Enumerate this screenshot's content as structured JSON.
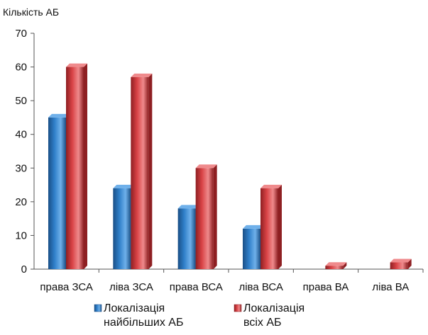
{
  "chart_data": {
    "type": "bar",
    "ylabel": "Кількість АБ",
    "xlabel": "",
    "categories": [
      "права ЗСА",
      "ліва ЗСА",
      "права ВСА",
      "ліва ВСА",
      "права ВА",
      "ліва ВА"
    ],
    "series": [
      {
        "name": [
          "Локалізація",
          "найбільших АБ"
        ],
        "values": [
          45,
          24,
          18,
          12,
          0,
          0
        ],
        "color": "#2f7fc9",
        "color_dark": "#1a4f86",
        "color_light": "#6fb0ea"
      },
      {
        "name": [
          "Локалізація",
          "всіх АБ"
        ],
        "values": [
          60,
          57,
          30,
          24,
          1,
          2
        ],
        "color": "#d94346",
        "color_dark": "#8e1f22",
        "color_light": "#ef8a8c"
      }
    ],
    "ylim": [
      0,
      70
    ],
    "yticks": [
      0,
      10,
      20,
      30,
      40,
      50,
      60,
      70
    ],
    "grid": false,
    "legend": "bottom"
  }
}
